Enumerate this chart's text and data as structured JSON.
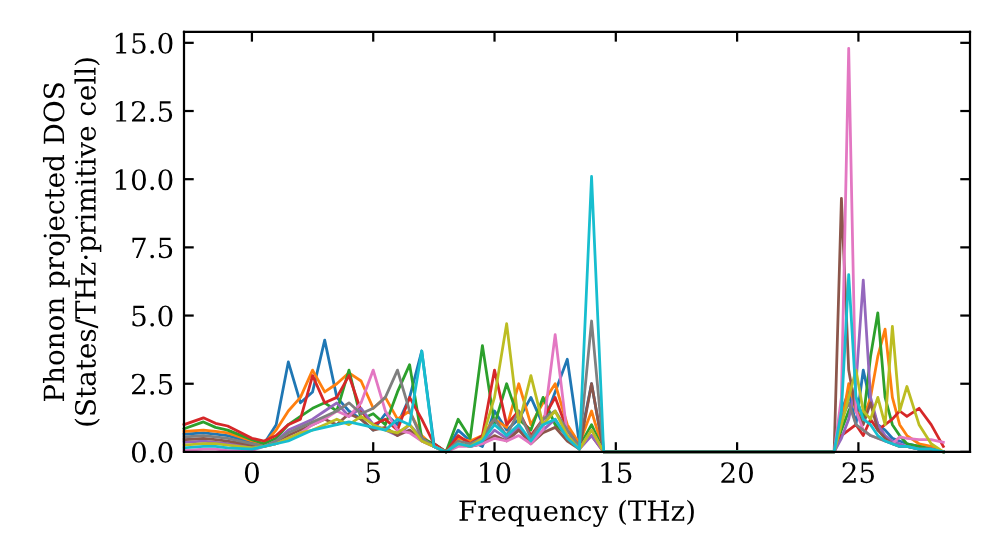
{
  "chart_data": {
    "type": "line",
    "xlabel": "Frequency (THz)",
    "ylabel": "Phonon projected DOS\n(States/THz·primitive cell)",
    "xlim": [
      -2.8,
      29.6
    ],
    "ylim": [
      0,
      15.4
    ],
    "xticks": [
      0,
      5,
      10,
      15,
      20,
      25
    ],
    "yticks": [
      {
        "value": 0,
        "label": "0.0"
      },
      {
        "value": 2.5,
        "label": "2.5"
      },
      {
        "value": 5,
        "label": "5.0"
      },
      {
        "value": 7.5,
        "label": "7.5"
      },
      {
        "value": 10,
        "label": "10.0"
      },
      {
        "value": 12.5,
        "label": "12.5"
      },
      {
        "value": 15,
        "label": "15.0"
      }
    ],
    "grid": false,
    "marker": "none",
    "line_style": "solid",
    "x": [
      -2.8,
      -2,
      -1.5,
      -1,
      0,
      0.5,
      1,
      1.5,
      2,
      2.5,
      3,
      3.5,
      4,
      4.5,
      5,
      5.5,
      6,
      6.5,
      7,
      7.5,
      8,
      8.5,
      9,
      9.5,
      10,
      10.5,
      11,
      11.5,
      12,
      12.5,
      13,
      13.5,
      14,
      14.5,
      15,
      20,
      24,
      24.3,
      24.6,
      24.9,
      25.2,
      25.5,
      25.8,
      26.1,
      26.4,
      26.7,
      27,
      27.5,
      28,
      28.5
    ],
    "series": [
      {
        "color": "#1f77b4",
        "values": [
          0.65,
          0.7,
          0.65,
          0.6,
          0.35,
          0.3,
          1.0,
          3.3,
          1.8,
          2.2,
          4.1,
          2.0,
          1.5,
          1.2,
          0.8,
          1.4,
          1.0,
          2.0,
          3.7,
          0.3,
          0,
          0.8,
          0.4,
          0.2,
          1.5,
          0.8,
          1.2,
          2.0,
          1.0,
          2.2,
          3.4,
          0.3,
          2.5,
          0,
          0,
          0,
          0,
          1.5,
          2.2,
          1.0,
          3.0,
          1.8,
          1.0,
          0.8,
          0.5,
          0.4,
          0.3,
          0.2,
          0.1,
          0
        ]
      },
      {
        "color": "#ff7f0e",
        "values": [
          0.75,
          0.8,
          0.75,
          0.7,
          0.4,
          0.3,
          0.8,
          1.5,
          2.0,
          3.0,
          2.2,
          2.5,
          2.9,
          2.6,
          1.6,
          2.0,
          1.2,
          1.5,
          0.6,
          0.2,
          0,
          0.5,
          0.4,
          0.6,
          1.2,
          0.9,
          2.5,
          1.0,
          1.8,
          2.5,
          1.0,
          0.3,
          1.5,
          0,
          0,
          0,
          0,
          1.0,
          2.5,
          1.5,
          1.2,
          2.0,
          3.5,
          4.5,
          2.0,
          1.0,
          0.6,
          0.3,
          0.2,
          0
        ]
      },
      {
        "color": "#2ca02c",
        "values": [
          0.85,
          1.1,
          0.9,
          0.8,
          0.45,
          0.3,
          0.5,
          1.0,
          1.3,
          1.6,
          1.8,
          1.5,
          3.0,
          1.2,
          1.4,
          1.0,
          2.2,
          3.2,
          0.5,
          0.3,
          0,
          1.2,
          0.5,
          3.9,
          1.0,
          2.5,
          1.2,
          0.8,
          2.0,
          1.0,
          0.6,
          0.2,
          1.0,
          0,
          0,
          0,
          0,
          0.8,
          1.5,
          2.0,
          1.2,
          3.5,
          5.1,
          2.0,
          1.0,
          0.6,
          0.3,
          0.2,
          0.1,
          0
        ]
      },
      {
        "color": "#d62728",
        "values": [
          1.0,
          1.25,
          1.05,
          0.95,
          0.5,
          0.4,
          0.6,
          1.0,
          1.2,
          2.8,
          1.8,
          2.0,
          2.8,
          1.5,
          1.0,
          1.2,
          0.8,
          2.0,
          1.2,
          0.3,
          0,
          0.6,
          0.3,
          0.6,
          3.0,
          1.0,
          1.5,
          0.6,
          1.2,
          2.0,
          0.8,
          0.2,
          0.6,
          0,
          0,
          0,
          0,
          0.6,
          0.8,
          1.0,
          0.6,
          1.2,
          0.8,
          1.0,
          1.2,
          1.5,
          1.3,
          1.6,
          1.0,
          0.2
        ]
      },
      {
        "color": "#9467bd",
        "values": [
          0.35,
          0.4,
          0.35,
          0.3,
          0.2,
          0.2,
          0.4,
          0.8,
          1.0,
          1.2,
          1.5,
          1.8,
          1.3,
          1.6,
          1.0,
          0.8,
          0.6,
          1.0,
          0.5,
          0.2,
          0,
          0.3,
          0.2,
          0.3,
          0.8,
          0.5,
          0.9,
          0.4,
          0.8,
          1.2,
          0.5,
          0.1,
          0.6,
          0,
          0,
          0,
          0,
          0.5,
          1.2,
          2.5,
          6.3,
          2.0,
          1.0,
          0.6,
          0.4,
          0.3,
          0.2,
          0.1,
          0.1,
          0
        ]
      },
      {
        "color": "#8c564b",
        "values": [
          0.45,
          0.5,
          0.45,
          0.4,
          0.25,
          0.2,
          0.3,
          0.6,
          0.8,
          1.0,
          1.2,
          1.0,
          1.4,
          1.2,
          0.8,
          0.9,
          0.6,
          0.8,
          0.4,
          0.2,
          0,
          0.3,
          0.2,
          0.3,
          0.6,
          0.4,
          0.8,
          0.3,
          0.7,
          0.9,
          0.4,
          0.1,
          2.5,
          0,
          0,
          0,
          0,
          9.3,
          3.0,
          1.5,
          1.0,
          1.8,
          0.8,
          0.5,
          0.3,
          0.2,
          0.2,
          0.1,
          0.1,
          0
        ]
      },
      {
        "color": "#e377c2",
        "values": [
          0.05,
          0.1,
          0.1,
          0.05,
          0.05,
          0.2,
          0.3,
          0.5,
          0.7,
          1.0,
          1.2,
          1.5,
          1.3,
          1.8,
          3.0,
          1.5,
          0.8,
          0.7,
          0.4,
          0.2,
          0,
          0.2,
          0.2,
          0.3,
          0.5,
          0.4,
          0.6,
          0.3,
          0.8,
          4.3,
          0.6,
          0.1,
          0.8,
          0,
          0,
          0,
          0,
          2.0,
          14.8,
          1.5,
          0.8,
          0.6,
          0.5,
          0.4,
          0.3,
          0.55,
          0.5,
          0.45,
          0.45,
          0.35
        ]
      },
      {
        "color": "#7f7f7f",
        "values": [
          0.55,
          0.6,
          0.55,
          0.5,
          0.3,
          0.2,
          0.4,
          0.7,
          0.9,
          1.1,
          1.3,
          1.5,
          1.8,
          1.4,
          1.6,
          2.0,
          3.0,
          1.5,
          0.5,
          0.2,
          0,
          0.4,
          0.3,
          0.5,
          1.2,
          0.6,
          1.5,
          0.5,
          1.2,
          1.5,
          0.8,
          0.2,
          4.8,
          0,
          0,
          0,
          0,
          1.2,
          1.8,
          1.0,
          0.8,
          0.6,
          0.5,
          0.4,
          0.3,
          0.2,
          0.2,
          0.1,
          0.1,
          0
        ]
      },
      {
        "color": "#bcbd22",
        "values": [
          0.25,
          0.3,
          0.3,
          0.25,
          0.15,
          0.2,
          0.3,
          0.5,
          0.7,
          0.8,
          1.0,
          1.2,
          1.0,
          1.3,
          1.0,
          0.8,
          0.7,
          1.0,
          0.4,
          0.2,
          0,
          0.3,
          0.2,
          0.5,
          2.0,
          4.7,
          1.0,
          2.8,
          1.0,
          1.5,
          0.6,
          0.1,
          0.8,
          0,
          0,
          0,
          0,
          1.0,
          2.0,
          3.0,
          1.5,
          1.2,
          2.0,
          1.0,
          4.6,
          1.5,
          2.4,
          1.0,
          0.3,
          0
        ]
      },
      {
        "color": "#17becf",
        "values": [
          0.15,
          0.2,
          0.2,
          0.15,
          0.1,
          0.2,
          0.3,
          0.4,
          0.6,
          0.8,
          0.9,
          1.0,
          1.1,
          1.0,
          0.9,
          0.8,
          1.2,
          1.0,
          3.7,
          0.2,
          0,
          0.3,
          0.2,
          0.4,
          1.0,
          0.6,
          1.0,
          0.4,
          1.0,
          1.2,
          0.5,
          0.1,
          10.1,
          0,
          0,
          0,
          0,
          1.5,
          6.5,
          2.0,
          1.2,
          1.0,
          0.6,
          0.4,
          0.3,
          0.2,
          0.2,
          0.1,
          0.1,
          0
        ]
      }
    ]
  }
}
